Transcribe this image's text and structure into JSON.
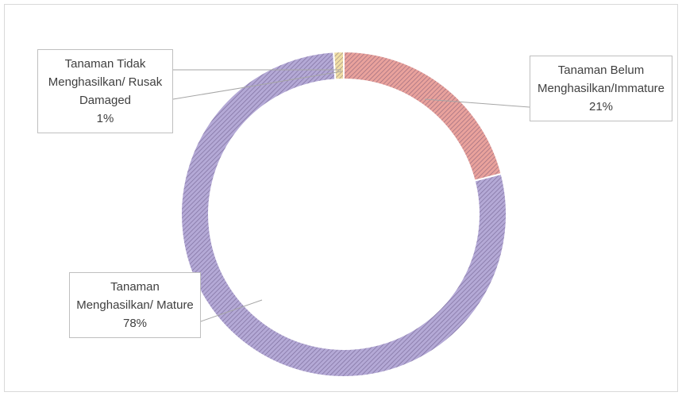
{
  "chart_data": {
    "type": "donut",
    "categories": [
      "Tanaman Belum Menghasilkan/Immature",
      "Tanaman Menghasilkan/ Mature",
      "Tanaman Tidak Menghasilkan/ Rusak Damaged"
    ],
    "values": [
      21,
      78,
      1
    ],
    "value_labels": [
      "21%",
      "78%",
      "1%"
    ],
    "colors": [
      "#e9a29c",
      "#b4a9d6",
      "#f1dfa6"
    ]
  }
}
